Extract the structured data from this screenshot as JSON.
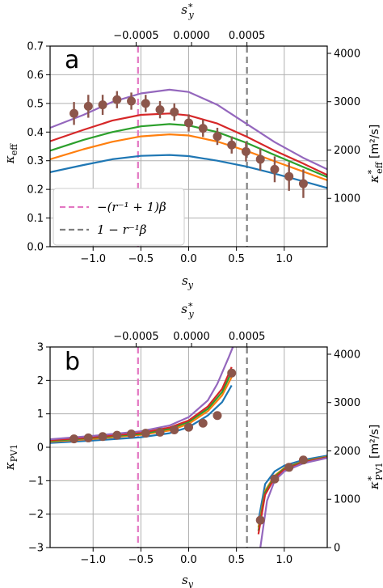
{
  "figure": {
    "panels": [
      {
        "letter": "a"
      },
      {
        "letter": "b"
      }
    ],
    "legend": [
      {
        "label": "−(r⁻¹ + 1)β",
        "color": "#e377c2",
        "style": "dashed"
      },
      {
        "label": "1 − r⁻¹β",
        "color": "#7f7f7f",
        "style": "dashed"
      }
    ]
  },
  "chart_data": [
    {
      "type": "line",
      "panel": "a",
      "xlabel": "s_y",
      "ylabel": "κ_eff",
      "top_xlabel": "s_y*",
      "right_ylabel": "κ*_eff [m²/s]",
      "xlim": [
        -1.45,
        1.45
      ],
      "ylim": [
        0.0,
        0.7
      ],
      "right_ylim": [
        0,
        4150
      ],
      "xticks": [
        "−1.0",
        "−0.5",
        "0.0",
        "0.5",
        "1.0"
      ],
      "yticks": [
        "0.0",
        "0.1",
        "0.2",
        "0.3",
        "0.4",
        "0.5",
        "0.6",
        "0.7"
      ],
      "top_ticks": [
        "−0.0005",
        "0.0000",
        "0.0005"
      ],
      "top_tick_positions": [
        -0.55,
        0.03,
        0.61
      ],
      "right_ticks": [
        "1000",
        "2000",
        "3000",
        "4000"
      ],
      "grid": true,
      "vlines": [
        {
          "x": -0.53,
          "color": "#e377c2",
          "style": "dashed"
        },
        {
          "x": 0.61,
          "color": "#7f7f7f",
          "style": "dashed"
        }
      ],
      "series": [
        {
          "color": "#1f77b4",
          "x": [
            -1.45,
            -1.1,
            -0.8,
            -0.5,
            -0.2,
            0.0,
            0.3,
            0.6,
            0.9,
            1.2,
            1.45
          ],
          "y": [
            0.26,
            0.285,
            0.305,
            0.317,
            0.32,
            0.316,
            0.3,
            0.28,
            0.255,
            0.228,
            0.205
          ]
        },
        {
          "color": "#ff7f0e",
          "x": [
            -1.45,
            -1.1,
            -0.8,
            -0.5,
            -0.2,
            0.0,
            0.3,
            0.6,
            0.9,
            1.2,
            1.45
          ],
          "y": [
            0.305,
            0.34,
            0.366,
            0.385,
            0.392,
            0.388,
            0.367,
            0.335,
            0.298,
            0.262,
            0.232
          ]
        },
        {
          "color": "#2ca02c",
          "x": [
            -1.45,
            -1.1,
            -0.8,
            -0.5,
            -0.2,
            0.0,
            0.3,
            0.6,
            0.9,
            1.2,
            1.45
          ],
          "y": [
            0.335,
            0.373,
            0.4,
            0.42,
            0.428,
            0.423,
            0.4,
            0.363,
            0.32,
            0.278,
            0.243
          ]
        },
        {
          "color": "#d62728",
          "x": [
            -1.45,
            -1.1,
            -0.8,
            -0.5,
            -0.2,
            0.0,
            0.3,
            0.6,
            0.9,
            1.2,
            1.45
          ],
          "y": [
            0.368,
            0.408,
            0.44,
            0.46,
            0.465,
            0.458,
            0.43,
            0.385,
            0.335,
            0.29,
            0.25
          ]
        },
        {
          "color": "#9467bd",
          "x": [
            -1.45,
            -1.1,
            -0.8,
            -0.5,
            -0.2,
            0.0,
            0.3,
            0.6,
            0.9,
            1.2,
            1.45
          ],
          "y": [
            0.415,
            0.46,
            0.505,
            0.535,
            0.548,
            0.54,
            0.495,
            0.43,
            0.365,
            0.31,
            0.27
          ]
        }
      ],
      "points": {
        "color": "#8c564b",
        "x": [
          -1.2,
          -1.05,
          -0.9,
          -0.75,
          -0.6,
          -0.45,
          -0.3,
          -0.15,
          0.0,
          0.15,
          0.3,
          0.45,
          0.6,
          0.75,
          0.9,
          1.05,
          1.2
        ],
        "y": [
          0.465,
          0.49,
          0.495,
          0.513,
          0.508,
          0.5,
          0.478,
          0.47,
          0.432,
          0.413,
          0.385,
          0.355,
          0.332,
          0.305,
          0.27,
          0.245,
          0.22
        ],
        "err": [
          0.04,
          0.04,
          0.035,
          0.03,
          0.03,
          0.03,
          0.03,
          0.03,
          0.03,
          0.03,
          0.03,
          0.03,
          0.035,
          0.04,
          0.045,
          0.05,
          0.05
        ]
      }
    },
    {
      "type": "line",
      "panel": "b",
      "xlabel": "s_y",
      "ylabel": "κ_PV1",
      "top_xlabel": "s_y*",
      "right_ylabel": "κ*_PV1 [m²/s]",
      "xlim": [
        -1.45,
        1.45
      ],
      "ylim": [
        -3,
        3
      ],
      "right_ylim": [
        0,
        4150
      ],
      "xticks": [
        "−1.0",
        "−0.5",
        "0.0",
        "0.5",
        "1.0"
      ],
      "yticks": [
        "−3",
        "−2",
        "−1",
        "0",
        "1",
        "2",
        "3"
      ],
      "top_ticks": [
        "−0.0005",
        "0.0000",
        "0.0005"
      ],
      "top_tick_positions": [
        -0.55,
        0.03,
        0.61
      ],
      "right_ticks": [
        "0",
        "1000",
        "2000",
        "3000",
        "4000"
      ],
      "grid": true,
      "vlines": [
        {
          "x": -0.53,
          "color": "#e377c2",
          "style": "dashed"
        },
        {
          "x": 0.61,
          "color": "#7f7f7f",
          "style": "dashed"
        }
      ],
      "series": [
        {
          "color": "#1f77b4",
          "branches": [
            {
              "x": [
                -1.45,
                -1.0,
                -0.5,
                -0.2,
                0.0,
                0.2,
                0.35,
                0.45
              ],
              "y": [
                0.13,
                0.2,
                0.3,
                0.42,
                0.6,
                0.95,
                1.35,
                1.85
              ]
            },
            {
              "x": [
                0.73,
                0.8,
                0.9,
                1.0,
                1.2,
                1.45
              ],
              "y": [
                -2.2,
                -1.1,
                -0.72,
                -0.55,
                -0.38,
                -0.25
              ]
            }
          ]
        },
        {
          "color": "#ff7f0e",
          "branches": [
            {
              "x": [
                -1.45,
                -1.0,
                -0.5,
                -0.2,
                0.0,
                0.2,
                0.35,
                0.45
              ],
              "y": [
                0.17,
                0.25,
                0.37,
                0.5,
                0.7,
                1.08,
                1.55,
                2.1
              ]
            },
            {
              "x": [
                0.73,
                0.8,
                0.9,
                1.0,
                1.2,
                1.45
              ],
              "y": [
                -2.4,
                -1.3,
                -0.85,
                -0.62,
                -0.42,
                -0.28
              ]
            }
          ]
        },
        {
          "color": "#2ca02c",
          "branches": [
            {
              "x": [
                -1.45,
                -1.0,
                -0.5,
                -0.2,
                0.0,
                0.2,
                0.35,
                0.45
              ],
              "y": [
                0.19,
                0.28,
                0.4,
                0.55,
                0.76,
                1.15,
                1.65,
                2.25
              ]
            },
            {
              "x": [
                0.73,
                0.8,
                0.9,
                1.0,
                1.2,
                1.45
              ],
              "y": [
                -2.5,
                -1.35,
                -0.88,
                -0.64,
                -0.43,
                -0.29
              ]
            }
          ]
        },
        {
          "color": "#d62728",
          "branches": [
            {
              "x": [
                -1.45,
                -1.0,
                -0.5,
                -0.2,
                0.0,
                0.2,
                0.35,
                0.45
              ],
              "y": [
                0.21,
                0.3,
                0.43,
                0.59,
                0.8,
                1.22,
                1.75,
                2.4
              ]
            },
            {
              "x": [
                0.73,
                0.8,
                0.9,
                1.0,
                1.2,
                1.45
              ],
              "y": [
                -2.6,
                -1.42,
                -0.92,
                -0.67,
                -0.45,
                -0.3
              ]
            }
          ]
        },
        {
          "color": "#9467bd",
          "branches": [
            {
              "x": [
                -1.45,
                -1.0,
                -0.5,
                -0.2,
                0.0,
                0.2,
                0.3,
                0.42,
                0.47
              ],
              "y": [
                0.24,
                0.34,
                0.48,
                0.65,
                0.9,
                1.4,
                1.9,
                2.7,
                3.05
              ]
            },
            {
              "x": [
                0.75,
                0.82,
                0.9,
                1.0,
                1.2,
                1.45
              ],
              "y": [
                -3.0,
                -1.6,
                -1.0,
                -0.72,
                -0.48,
                -0.32
              ]
            }
          ]
        }
      ],
      "points": {
        "color": "#8c564b",
        "x": [
          -1.2,
          -1.05,
          -0.9,
          -0.75,
          -0.6,
          -0.45,
          -0.3,
          -0.15,
          0.0,
          0.15,
          0.3,
          0.45,
          0.75,
          0.9,
          1.05,
          1.2
        ],
        "y": [
          0.25,
          0.28,
          0.32,
          0.36,
          0.4,
          0.42,
          0.45,
          0.52,
          0.6,
          0.72,
          0.95,
          2.22,
          -2.18,
          -0.95,
          -0.6,
          -0.38
        ]
      }
    }
  ]
}
